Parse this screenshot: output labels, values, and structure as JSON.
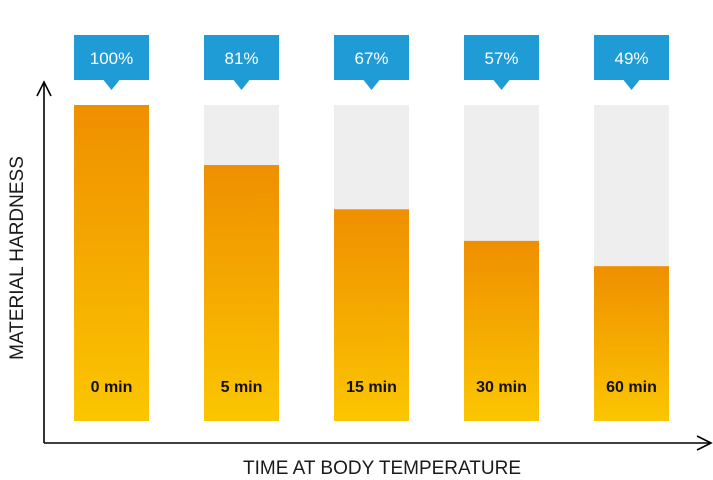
{
  "chart_data": {
    "type": "bar",
    "categories": [
      "0 min",
      "5 min",
      "15 min",
      "30 min",
      "60 min"
    ],
    "values": [
      100,
      81,
      67,
      57,
      49
    ],
    "value_labels": [
      "100%",
      "81%",
      "67%",
      "57%",
      "49%"
    ],
    "xlabel": "TIME AT BODY TEMPERATURE",
    "ylabel": "MATERIAL HARDNESS",
    "ylim": [
      0,
      100
    ],
    "grid": false,
    "colors": {
      "bar_top": "#ef8f00",
      "bar_bottom": "#fbc600",
      "track": "#eeeeee",
      "callout": "#1f9bd6",
      "axis": "#000000"
    }
  }
}
